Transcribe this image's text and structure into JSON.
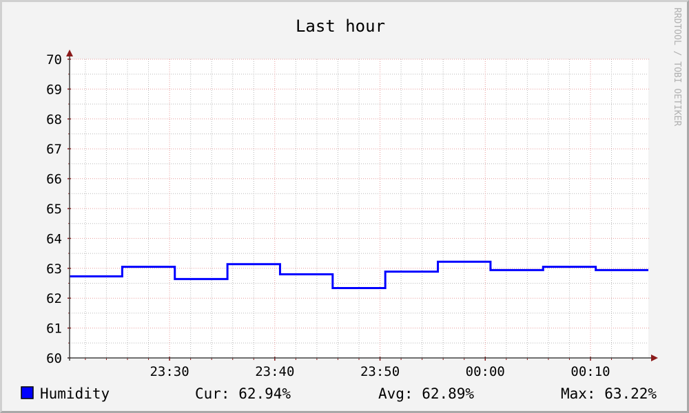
{
  "chart_data": {
    "type": "line",
    "title": "Last hour",
    "watermark": "RRDTOOL / TOBI OETIKER",
    "x_tick_labels": [
      "23:30",
      "23:40",
      "23:50",
      "00:00",
      "00:10"
    ],
    "x_tick_minutes": [
      30,
      40,
      50,
      60,
      70
    ],
    "x_range_minutes": [
      20.5,
      75.5
    ],
    "x_minor_step_minutes": 2,
    "y_ticks": [
      60,
      61,
      62,
      63,
      64,
      65,
      66,
      67,
      68,
      69,
      70
    ],
    "ylim": [
      60,
      70
    ],
    "y_minor_step": 0.5,
    "grid": true,
    "series": [
      {
        "name": "Humidity",
        "color": "#0000ff",
        "steps": [
          {
            "from": 20.5,
            "to": 25.5,
            "value": 62.73
          },
          {
            "from": 25.5,
            "to": 30.5,
            "value": 63.05
          },
          {
            "from": 30.5,
            "to": 35.5,
            "value": 62.64
          },
          {
            "from": 35.5,
            "to": 40.5,
            "value": 63.14
          },
          {
            "from": 40.5,
            "to": 45.5,
            "value": 62.8
          },
          {
            "from": 45.5,
            "to": 50.5,
            "value": 62.34
          },
          {
            "from": 50.5,
            "to": 55.5,
            "value": 62.89
          },
          {
            "from": 55.5,
            "to": 60.5,
            "value": 63.22
          },
          {
            "from": 60.5,
            "to": 65.5,
            "value": 62.94
          },
          {
            "from": 65.5,
            "to": 70.5,
            "value": 63.05
          },
          {
            "from": 70.5,
            "to": 75.5,
            "value": 62.94
          }
        ]
      }
    ],
    "legend": {
      "label": "Humidity",
      "cur": "Cur: 62.94%",
      "avg": "Avg: 62.89%",
      "max": "Max: 63.22%"
    },
    "colors": {
      "background": "#f3f3f3",
      "plot_background": "#ffffff",
      "major_grid": "#e89a9a",
      "minor_grid": "#b8b8b8",
      "axis": "#8b1a1a",
      "text": "#000000",
      "watermark": "#b0b0b0"
    }
  }
}
